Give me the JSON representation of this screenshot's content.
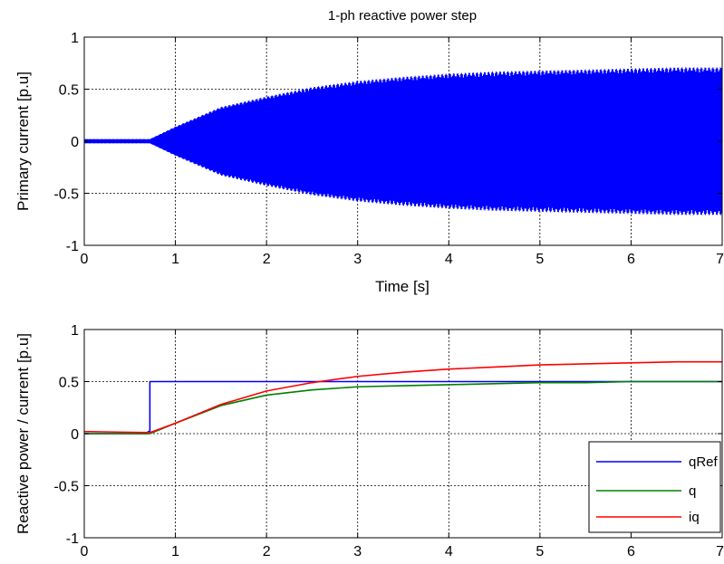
{
  "chart_data": [
    {
      "type": "line",
      "title": "1-ph reactive power step",
      "xlabel": "Time [s]",
      "ylabel": "Primary current [p.u]",
      "xlim": [
        0,
        7
      ],
      "ylim": [
        -1,
        1
      ],
      "x_ticks": [
        "0",
        "1",
        "2",
        "3",
        "4",
        "5",
        "6",
        "7"
      ],
      "y_ticks": [
        "1",
        "0.5",
        "0",
        "-0.5",
        "-1"
      ],
      "grid": true,
      "series": [
        {
          "color": "#0000ff",
          "style": "oscillating",
          "envelope_x": [
            0,
            0.72,
            1.0,
            1.5,
            2.0,
            2.5,
            3.0,
            3.5,
            4.0,
            4.5,
            5.0,
            5.5,
            6.0,
            6.5,
            7.0
          ],
          "envelope_amplitude": [
            0.02,
            0.02,
            0.14,
            0.33,
            0.43,
            0.52,
            0.58,
            0.62,
            0.65,
            0.67,
            0.68,
            0.69,
            0.7,
            0.71,
            0.71
          ]
        }
      ]
    },
    {
      "type": "line",
      "title": "",
      "xlabel": "",
      "ylabel": "Reactive power / current [p.u]",
      "xlim": [
        0,
        7
      ],
      "ylim": [
        -1,
        1
      ],
      "x_ticks": [
        "0",
        "1",
        "2",
        "3",
        "4",
        "5",
        "6",
        "7"
      ],
      "y_ticks": [
        "1",
        "0.5",
        "0",
        "-0.5",
        "-1"
      ],
      "grid": true,
      "legend_position": "bottom-right",
      "series": [
        {
          "name": "qRef",
          "color": "#0000ff",
          "x": [
            0,
            0.7,
            0.7,
            0.72,
            0.72,
            7
          ],
          "y": [
            0.0,
            0.0,
            0.02,
            0.02,
            0.5,
            0.5
          ]
        },
        {
          "name": "q",
          "color": "#008000",
          "x": [
            0,
            0.72,
            1.0,
            1.5,
            2.0,
            2.5,
            3.0,
            3.5,
            4.0,
            4.5,
            5.0,
            5.5,
            6.0,
            6.5,
            7.0
          ],
          "y": [
            0.0,
            0.0,
            0.1,
            0.27,
            0.37,
            0.42,
            0.45,
            0.46,
            0.47,
            0.48,
            0.49,
            0.49,
            0.5,
            0.5,
            0.5
          ]
        },
        {
          "name": "iq",
          "color": "#ff0000",
          "x": [
            0,
            0.72,
            1.0,
            1.5,
            2.0,
            2.5,
            3.0,
            3.5,
            4.0,
            4.5,
            5.0,
            5.5,
            6.0,
            6.5,
            7.0
          ],
          "y": [
            0.02,
            0.01,
            0.1,
            0.28,
            0.41,
            0.49,
            0.55,
            0.59,
            0.62,
            0.64,
            0.66,
            0.67,
            0.68,
            0.69,
            0.69
          ]
        }
      ]
    }
  ]
}
